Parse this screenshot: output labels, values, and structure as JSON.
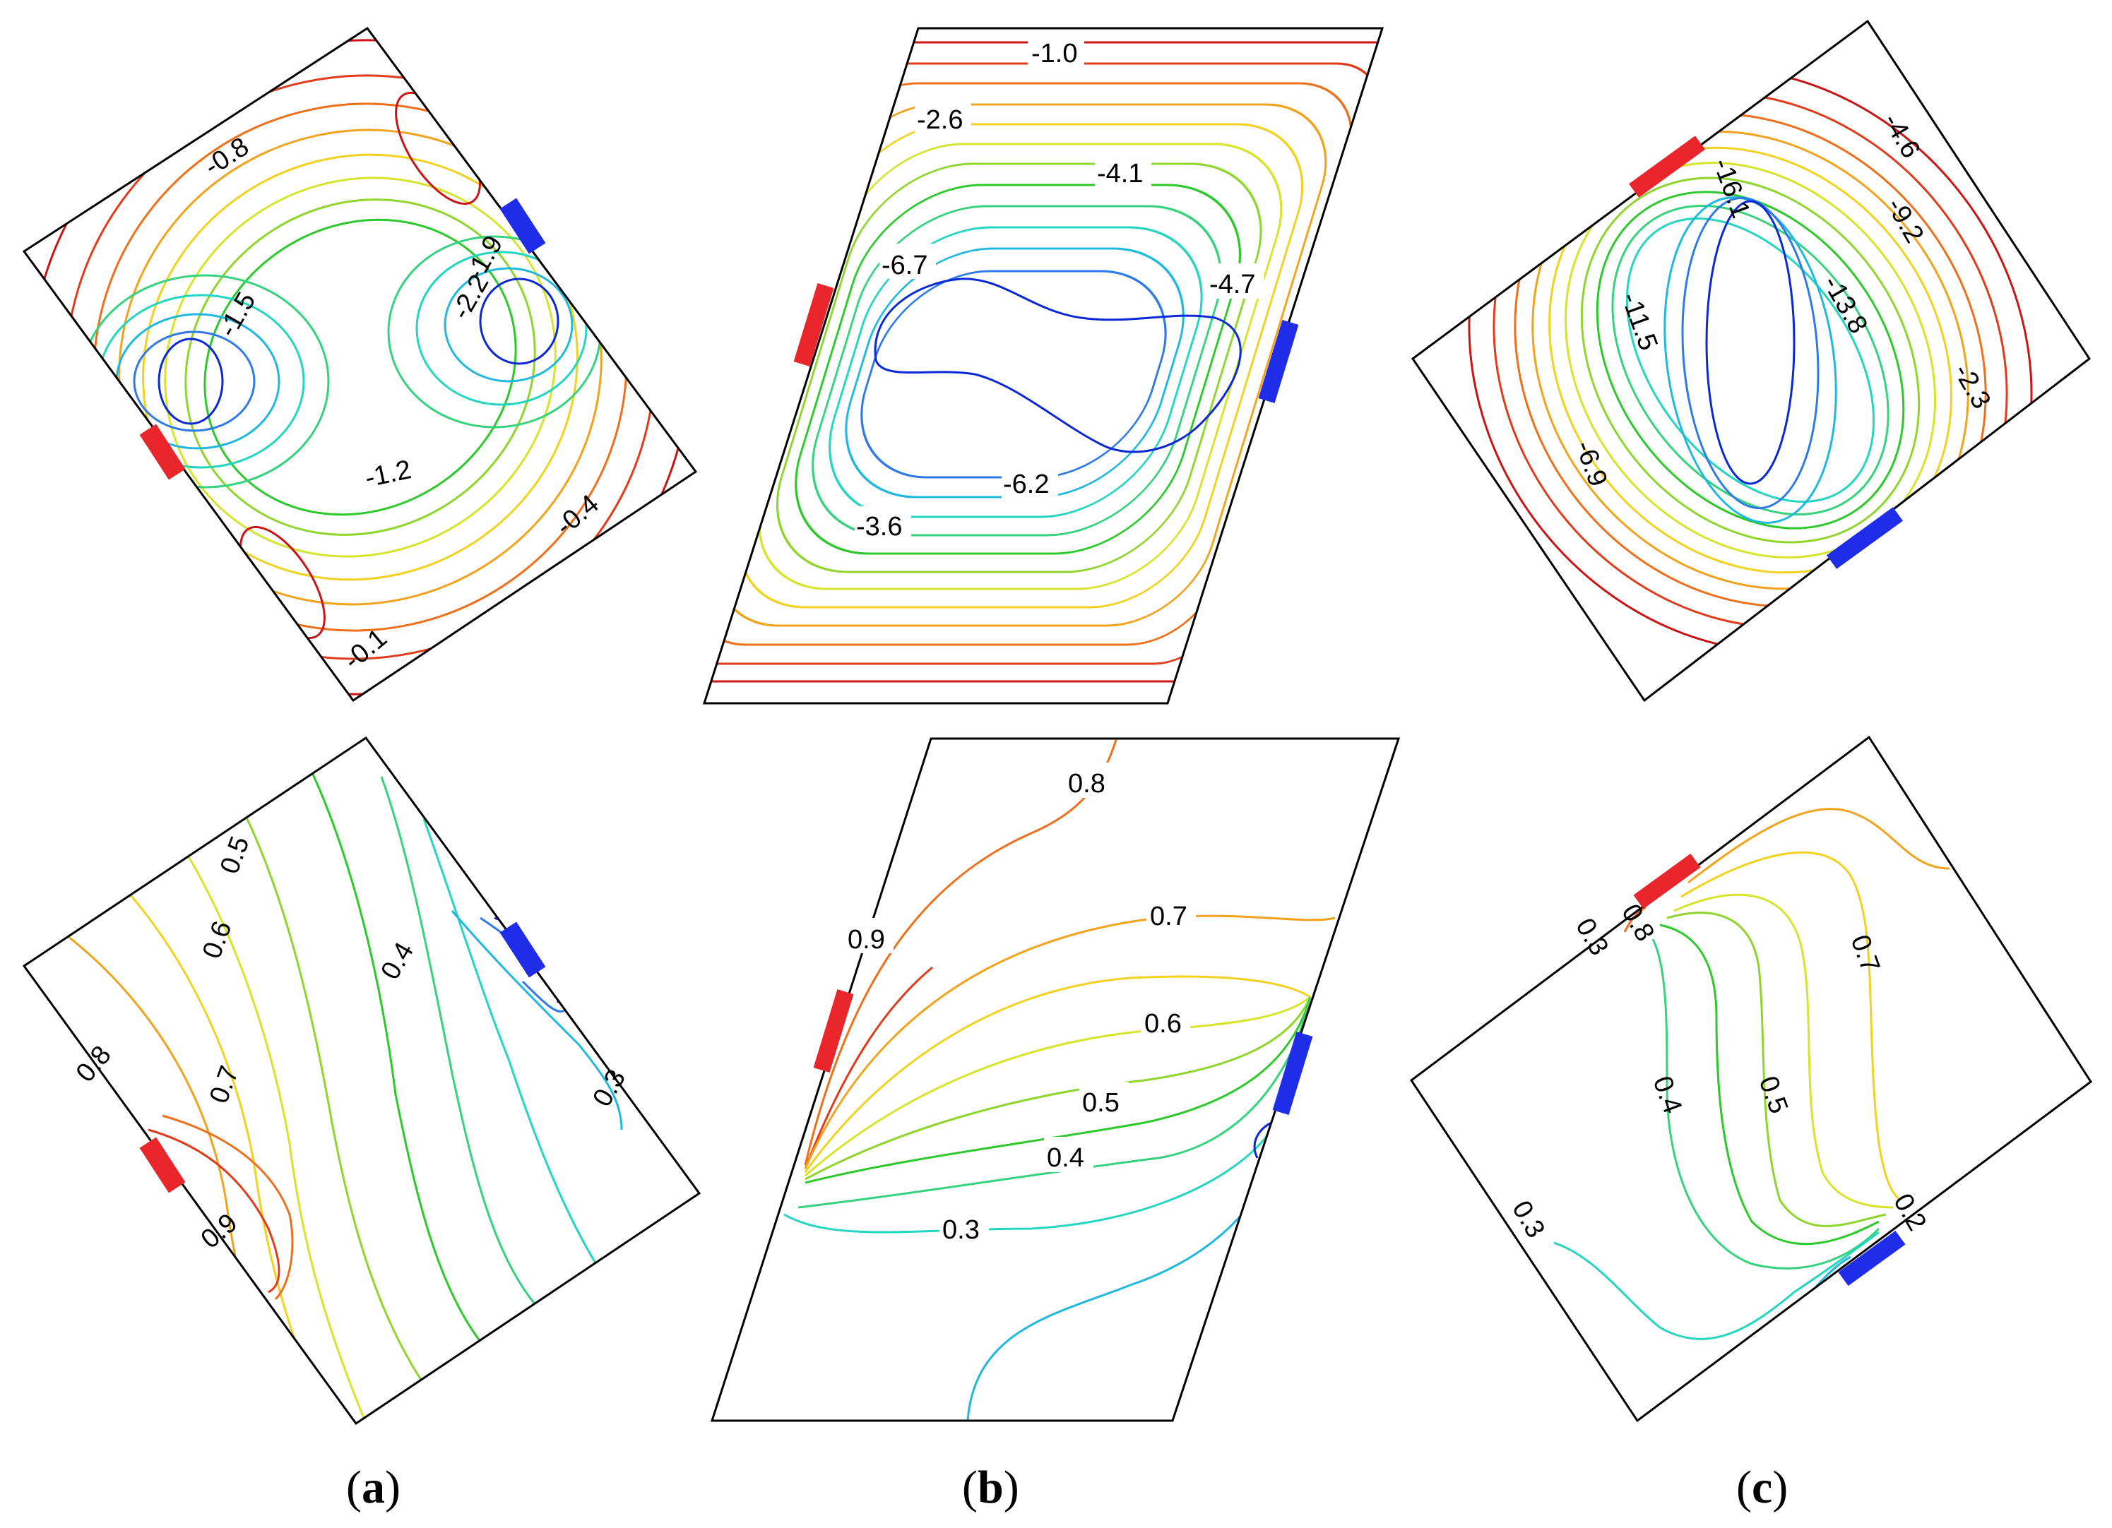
{
  "panels": [
    {
      "id": "a",
      "label_open": "(",
      "label_letter": "a",
      "label_close": ")",
      "top_labels": [
        "-0.8",
        "-1.5",
        "-1.9",
        "-2.2",
        "-1.2",
        "-0.4",
        "-0.1"
      ],
      "bottom_labels": [
        "0.5",
        "0.6",
        "0.4",
        "0.8",
        "0.7",
        "0.3",
        "0.9"
      ]
    },
    {
      "id": "b",
      "label_open": "(",
      "label_letter": "b",
      "label_close": ")",
      "top_labels": [
        "-1.0",
        "-2.6",
        "-4.1",
        "-6.7",
        "-4.7",
        "-6.2",
        "-3.6"
      ],
      "bottom_labels": [
        "0.8",
        "0.9",
        "0.7",
        "0.6",
        "0.5",
        "0.4",
        "0.3"
      ]
    },
    {
      "id": "c",
      "label_open": "(",
      "label_letter": "c",
      "label_close": ")",
      "top_labels": [
        "-4.6",
        "-16.1",
        "-9.2",
        "-13.8",
        "-11.5",
        "-2.3",
        "-6.9"
      ],
      "bottom_labels": [
        "0.8",
        "0.3",
        "0.7",
        "0.4",
        "0.5",
        "0.2",
        "0.3"
      ]
    }
  ],
  "colors": {
    "heater": "#e8262b",
    "cooler": "#1f2de8",
    "frame": "#000000",
    "contour_ramp": [
      "#0a28d6",
      "#2f7ae8",
      "#1fb8e0",
      "#22d6c2",
      "#34d37c",
      "#2bc92a",
      "#8fd62c",
      "#d6e42a",
      "#f2d21f",
      "#f3a21c",
      "#ef6f1a",
      "#e23a1a",
      "#cc1414"
    ]
  }
}
